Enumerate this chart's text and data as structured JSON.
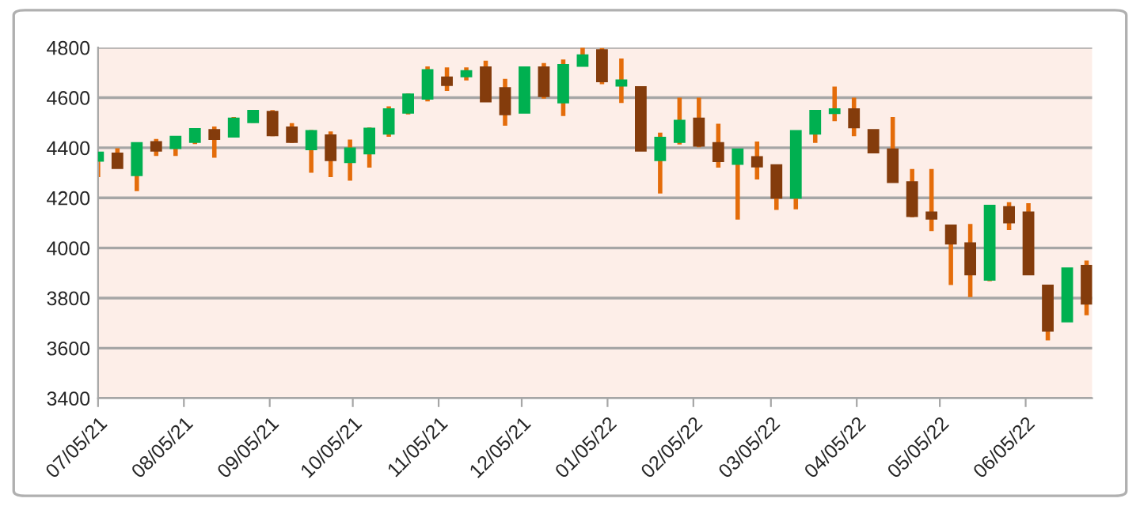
{
  "chart_data": {
    "type": "candlestick",
    "x": [
      "2021-07-05",
      "2021-07-12",
      "2021-07-19",
      "2021-07-26",
      "2021-08-02",
      "2021-08-09",
      "2021-08-16",
      "2021-08-23",
      "2021-08-30",
      "2021-09-06",
      "2021-09-13",
      "2021-09-20",
      "2021-09-27",
      "2021-10-04",
      "2021-10-11",
      "2021-10-18",
      "2021-10-25",
      "2021-11-01",
      "2021-11-08",
      "2021-11-15",
      "2021-11-22",
      "2021-11-29",
      "2021-12-06",
      "2021-12-13",
      "2021-12-20",
      "2021-12-27",
      "2022-01-03",
      "2022-01-10",
      "2022-01-17",
      "2022-01-24",
      "2022-01-31",
      "2022-02-07",
      "2022-02-14",
      "2022-02-21",
      "2022-02-28",
      "2022-03-07",
      "2022-03-14",
      "2022-03-21",
      "2022-03-28",
      "2022-04-04",
      "2022-04-11",
      "2022-04-18",
      "2022-04-25",
      "2022-05-02",
      "2022-05-09",
      "2022-05-16",
      "2022-05-23",
      "2022-05-30",
      "2022-06-06",
      "2022-06-13",
      "2022-06-20",
      "2022-06-27"
    ],
    "ohlc": [
      [
        4348,
        4383,
        4283,
        4381
      ],
      [
        4377,
        4398,
        4319,
        4319
      ],
      [
        4290,
        4419,
        4227,
        4419
      ],
      [
        4423,
        4435,
        4367,
        4388
      ],
      [
        4398,
        4444,
        4367,
        4444
      ],
      [
        4423,
        4477,
        4415,
        4475
      ],
      [
        4471,
        4485,
        4360,
        4435
      ],
      [
        4444,
        4523,
        4444,
        4517
      ],
      [
        4502,
        4550,
        4500,
        4548
      ],
      [
        4544,
        4550,
        4446,
        4450
      ],
      [
        4481,
        4498,
        4419,
        4423
      ],
      [
        4394,
        4471,
        4300,
        4467
      ],
      [
        4450,
        4465,
        4283,
        4350
      ],
      [
        4342,
        4433,
        4269,
        4398
      ],
      [
        4377,
        4481,
        4321,
        4477
      ],
      [
        4456,
        4565,
        4444,
        4554
      ],
      [
        4540,
        4617,
        4533,
        4613
      ],
      [
        4596,
        4725,
        4585,
        4710
      ],
      [
        4681,
        4721,
        4627,
        4650
      ],
      [
        4685,
        4721,
        4669,
        4706
      ],
      [
        4721,
        4748,
        4585,
        4585
      ],
      [
        4638,
        4675,
        4488,
        4533
      ],
      [
        4540,
        4721,
        4540,
        4721
      ],
      [
        4721,
        4738,
        4596,
        4606
      ],
      [
        4581,
        4752,
        4527,
        4731
      ],
      [
        4727,
        4800,
        4727,
        4769
      ],
      [
        4790,
        4798,
        4654,
        4665
      ],
      [
        4648,
        4756,
        4579,
        4669
      ],
      [
        4642,
        4642,
        4388,
        4388
      ],
      [
        4350,
        4460,
        4217,
        4440
      ],
      [
        4423,
        4600,
        4413,
        4508
      ],
      [
        4517,
        4600,
        4402,
        4408
      ],
      [
        4419,
        4496,
        4321,
        4346
      ],
      [
        4335,
        4394,
        4113,
        4394
      ],
      [
        4363,
        4425,
        4273,
        4325
      ],
      [
        4331,
        4331,
        4152,
        4200
      ],
      [
        4200,
        4467,
        4154,
        4467
      ],
      [
        4456,
        4548,
        4419,
        4548
      ],
      [
        4538,
        4644,
        4506,
        4554
      ],
      [
        4554,
        4600,
        4446,
        4481
      ],
      [
        4471,
        4471,
        4381,
        4381
      ],
      [
        4394,
        4523,
        4263,
        4263
      ],
      [
        4263,
        4315,
        4123,
        4127
      ],
      [
        4142,
        4315,
        4067,
        4117
      ],
      [
        4090,
        4090,
        3852,
        4017
      ],
      [
        4019,
        4096,
        3804,
        3894
      ],
      [
        3873,
        4169,
        3867,
        4169
      ],
      [
        4163,
        4183,
        4071,
        4102
      ],
      [
        4142,
        4179,
        3894,
        3894
      ],
      [
        3850,
        3850,
        3631,
        3669
      ],
      [
        3706,
        3919,
        3706,
        3919
      ],
      [
        3929,
        3950,
        3731,
        3777
      ]
    ],
    "colors": [
      "#00b050",
      "#843c0c",
      "#00b050",
      "#843c0c",
      "#00b050",
      "#00b050",
      "#843c0c",
      "#00b050",
      "#00b050",
      "#843c0c",
      "#843c0c",
      "#00b050",
      "#843c0c",
      "#00b050",
      "#00b050",
      "#00b050",
      "#00b050",
      "#00b050",
      "#843c0c",
      "#00b050",
      "#843c0c",
      "#843c0c",
      "#00b050",
      "#843c0c",
      "#00b050",
      "#00b050",
      "#843c0c",
      "#00b050",
      "#843c0c",
      "#00b050",
      "#00b050",
      "#843c0c",
      "#843c0c",
      "#00b050",
      "#843c0c",
      "#843c0c",
      "#00b050",
      "#00b050",
      "#00b050",
      "#843c0c",
      "#843c0c",
      "#843c0c",
      "#843c0c",
      "#843c0c",
      "#843c0c",
      "#843c0c",
      "#00b050",
      "#843c0c",
      "#843c0c",
      "#843c0c",
      "#00b050",
      "#843c0c"
    ],
    "color": "#e46c0a",
    "xlim": [
      "2021-07-05",
      "2022-06-29"
    ],
    "xticks": [
      {
        "value": "2021-07-05",
        "label": "07/05/21"
      },
      {
        "value": "2021-08-05",
        "label": "08/05/21"
      },
      {
        "value": "2021-09-05",
        "label": "09/05/21"
      },
      {
        "value": "2021-10-05",
        "label": "10/05/21"
      },
      {
        "value": "2021-11-05",
        "label": "11/05/21"
      },
      {
        "value": "2021-12-05",
        "label": "12/05/21"
      },
      {
        "value": "2022-01-05",
        "label": "01/05/22"
      },
      {
        "value": "2022-02-05",
        "label": "02/05/22"
      },
      {
        "value": "2022-03-05",
        "label": "03/05/22"
      },
      {
        "value": "2022-04-05",
        "label": "04/05/22"
      },
      {
        "value": "2022-05-05",
        "label": "05/05/22"
      },
      {
        "value": "2022-06-05",
        "label": "06/05/22"
      }
    ],
    "ylim": [
      3400,
      4800
    ],
    "yticks": [
      3400,
      3600,
      3800,
      4000,
      4200,
      4400,
      4600,
      4800
    ],
    "grid": "y"
  }
}
